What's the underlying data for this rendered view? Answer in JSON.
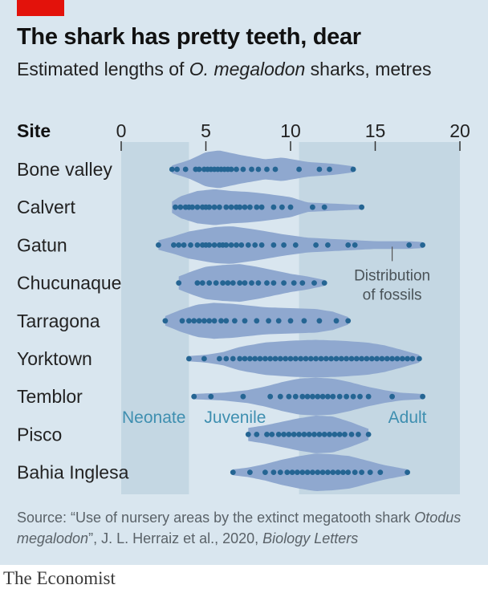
{
  "header": {
    "title": "The shark has pretty teeth, dear",
    "subtitle_prefix": "Estimated lengths of ",
    "subtitle_species": "O. megalodon",
    "subtitle_suffix": " sharks, metres"
  },
  "colors": {
    "background": "#d9e6ef",
    "zone_shade": "#c4d7e3",
    "violin": "#8fa8cf",
    "dot": "#256593",
    "zone_label": "#3f8fb0",
    "accent_tag": "#e3120b"
  },
  "chart_data": {
    "type": "violin-dot",
    "row_header": "Site",
    "xlim": [
      0,
      20
    ],
    "xticks": [
      0,
      5,
      10,
      15,
      20
    ],
    "zones": [
      {
        "label": "Neonate",
        "range": [
          0,
          4
        ]
      },
      {
        "label": "Juvenile",
        "range": [
          4,
          10.5
        ]
      },
      {
        "label": "Adult",
        "range": [
          10.5,
          20
        ]
      }
    ],
    "annotation": {
      "text_line1": "Distribution",
      "text_line2": "of fossils",
      "x": 16,
      "site": "Gatun"
    },
    "sites": [
      {
        "name": "Bone valley",
        "range": [
          3,
          13.7
        ],
        "density": [
          [
            3,
            0.15
          ],
          [
            4,
            0.45
          ],
          [
            5,
            0.9
          ],
          [
            5.8,
            1.0
          ],
          [
            7,
            0.75
          ],
          [
            8.5,
            0.5
          ],
          [
            9.5,
            0.6
          ],
          [
            11,
            0.35
          ],
          [
            12.5,
            0.25
          ],
          [
            13.7,
            0.1
          ]
        ],
        "points": [
          3.0,
          3.3,
          3.8,
          4.4,
          4.6,
          4.9,
          5.1,
          5.3,
          5.5,
          5.7,
          5.9,
          6.1,
          6.3,
          6.5,
          6.8,
          7.2,
          7.7,
          8.1,
          8.6,
          9.1,
          10.5,
          11.7,
          12.3,
          13.7
        ]
      },
      {
        "name": "Calvert",
        "range": [
          3,
          14.2
        ],
        "density": [
          [
            3,
            0.25
          ],
          [
            3.5,
            0.55
          ],
          [
            4.5,
            0.85
          ],
          [
            5.5,
            0.95
          ],
          [
            6.5,
            0.85
          ],
          [
            7.5,
            0.8
          ],
          [
            8.5,
            0.7
          ],
          [
            10,
            0.5
          ],
          [
            11,
            0.2
          ],
          [
            14.2,
            0.06
          ]
        ],
        "points": [
          3.2,
          3.5,
          3.8,
          4.0,
          4.2,
          4.5,
          4.8,
          5.0,
          5.2,
          5.5,
          5.8,
          6.2,
          6.5,
          6.8,
          7.0,
          7.3,
          7.6,
          8.0,
          8.3,
          9.0,
          9.5,
          10.0,
          11.3,
          12.0,
          14.2
        ]
      },
      {
        "name": "Gatun",
        "range": [
          2.2,
          17.8
        ],
        "density": [
          [
            2.2,
            0.2
          ],
          [
            3,
            0.4
          ],
          [
            4,
            0.7
          ],
          [
            5.5,
            0.95
          ],
          [
            6.5,
            1.0
          ],
          [
            8,
            0.8
          ],
          [
            9.5,
            0.55
          ],
          [
            11,
            0.35
          ],
          [
            13,
            0.25
          ],
          [
            15,
            0.15
          ],
          [
            17,
            0.15
          ],
          [
            17.8,
            0.1
          ]
        ],
        "points": [
          2.2,
          3.1,
          3.4,
          3.7,
          4.1,
          4.5,
          4.8,
          5.0,
          5.2,
          5.5,
          5.8,
          6.0,
          6.2,
          6.5,
          6.8,
          7.1,
          7.5,
          7.9,
          8.3,
          9.0,
          9.6,
          10.3,
          11.5,
          12.2,
          13.4,
          13.8,
          17.0,
          17.8
        ]
      },
      {
        "name": "Chucunaque",
        "range": [
          3.4,
          12
        ],
        "density": [
          [
            3.4,
            0.3
          ],
          [
            4.2,
            0.6
          ],
          [
            5,
            0.85
          ],
          [
            6,
            0.95
          ],
          [
            7,
            1.0
          ],
          [
            8,
            0.85
          ],
          [
            9,
            0.65
          ],
          [
            10,
            0.45
          ],
          [
            11,
            0.3
          ],
          [
            12,
            0.1
          ]
        ],
        "points": [
          3.4,
          4.5,
          4.8,
          5.2,
          5.6,
          6.0,
          6.3,
          6.6,
          7.0,
          7.3,
          7.7,
          8.1,
          8.6,
          9.0,
          9.6,
          10.2,
          10.7,
          11.4,
          12.0
        ]
      },
      {
        "name": "Tarragona",
        "range": [
          2.6,
          13.4
        ],
        "density": [
          [
            2.6,
            0.2
          ],
          [
            3.5,
            0.55
          ],
          [
            4.5,
            0.85
          ],
          [
            5.5,
            0.95
          ],
          [
            6.5,
            0.9
          ],
          [
            7.5,
            0.8
          ],
          [
            8.5,
            0.7
          ],
          [
            10,
            0.65
          ],
          [
            11.5,
            0.6
          ],
          [
            12.5,
            0.45
          ],
          [
            13.4,
            0.15
          ]
        ],
        "points": [
          2.6,
          3.6,
          4.0,
          4.3,
          4.6,
          4.9,
          5.2,
          5.5,
          5.9,
          6.2,
          6.7,
          7.3,
          8.0,
          8.7,
          9.3,
          10.0,
          10.8,
          11.7,
          12.7,
          13.4
        ]
      },
      {
        "name": "Yorktown",
        "range": [
          4,
          17.6
        ],
        "density": [
          [
            4,
            0.08
          ],
          [
            5,
            0.15
          ],
          [
            6,
            0.3
          ],
          [
            7,
            0.6
          ],
          [
            8.5,
            0.85
          ],
          [
            10,
            0.95
          ],
          [
            11.5,
            1.0
          ],
          [
            13,
            0.95
          ],
          [
            14.5,
            0.85
          ],
          [
            15.5,
            0.7
          ],
          [
            16.5,
            0.45
          ],
          [
            17.6,
            0.15
          ]
        ],
        "points": [
          4.0,
          4.9,
          5.8,
          6.2,
          6.6,
          7.0,
          7.3,
          7.6,
          7.9,
          8.2,
          8.5,
          8.8,
          9.1,
          9.4,
          9.7,
          10.0,
          10.3,
          10.6,
          10.9,
          11.2,
          11.5,
          11.8,
          12.1,
          12.4,
          12.7,
          13.0,
          13.3,
          13.6,
          13.9,
          14.2,
          14.5,
          14.8,
          15.1,
          15.4,
          15.7,
          16.0,
          16.3,
          16.6,
          16.9,
          17.2,
          17.6
        ]
      },
      {
        "name": "Temblor",
        "range": [
          4.3,
          17.8
        ],
        "density": [
          [
            4.3,
            0.08
          ],
          [
            6,
            0.15
          ],
          [
            7.5,
            0.3
          ],
          [
            8.5,
            0.5
          ],
          [
            9.5,
            0.75
          ],
          [
            10.5,
            0.95
          ],
          [
            11.5,
            1.0
          ],
          [
            12.5,
            0.95
          ],
          [
            13.5,
            0.75
          ],
          [
            14.5,
            0.5
          ],
          [
            15.5,
            0.3
          ],
          [
            16.5,
            0.15
          ],
          [
            17.8,
            0.08
          ]
        ],
        "points": [
          4.3,
          5.3,
          7.2,
          8.8,
          9.4,
          9.9,
          10.3,
          10.7,
          11.0,
          11.3,
          11.6,
          11.9,
          12.2,
          12.5,
          12.9,
          13.3,
          13.7,
          14.1,
          14.6,
          16.0,
          17.8
        ]
      },
      {
        "name": "Pisco",
        "range": [
          7.5,
          14.6
        ],
        "density": [
          [
            7.5,
            0.3
          ],
          [
            8.5,
            0.45
          ],
          [
            9.5,
            0.65
          ],
          [
            10.5,
            0.85
          ],
          [
            11.5,
            1.0
          ],
          [
            12.5,
            0.95
          ],
          [
            13.5,
            0.65
          ],
          [
            14.6,
            0.25
          ]
        ],
        "points": [
          7.5,
          8.0,
          8.6,
          8.9,
          9.3,
          9.6,
          9.9,
          10.2,
          10.5,
          10.8,
          11.1,
          11.4,
          11.7,
          12.0,
          12.3,
          12.6,
          12.9,
          13.2,
          13.6,
          14.0,
          14.6
        ]
      },
      {
        "name": "Bahia Inglesa",
        "range": [
          6.6,
          16.9
        ],
        "density": [
          [
            6.6,
            0.1
          ],
          [
            7.5,
            0.2
          ],
          [
            8.5,
            0.4
          ],
          [
            9.5,
            0.65
          ],
          [
            10.5,
            0.85
          ],
          [
            11.5,
            1.0
          ],
          [
            12.5,
            0.95
          ],
          [
            13.5,
            0.85
          ],
          [
            14.5,
            0.6
          ],
          [
            15.5,
            0.35
          ],
          [
            16.9,
            0.1
          ]
        ],
        "points": [
          6.6,
          7.6,
          8.5,
          9.0,
          9.4,
          9.8,
          10.1,
          10.4,
          10.7,
          11.0,
          11.3,
          11.6,
          11.9,
          12.2,
          12.5,
          12.8,
          13.1,
          13.4,
          13.8,
          14.2,
          14.7,
          15.3,
          16.9
        ]
      }
    ]
  },
  "source": {
    "prefix": "Source: “Use of nursery areas by the extinct megatooth shark ",
    "species": "Otodus megalodon",
    "middle": "”, J. L. Herraiz et al., 2020, ",
    "journal": "Biology Letters"
  },
  "brand": "The Economist"
}
